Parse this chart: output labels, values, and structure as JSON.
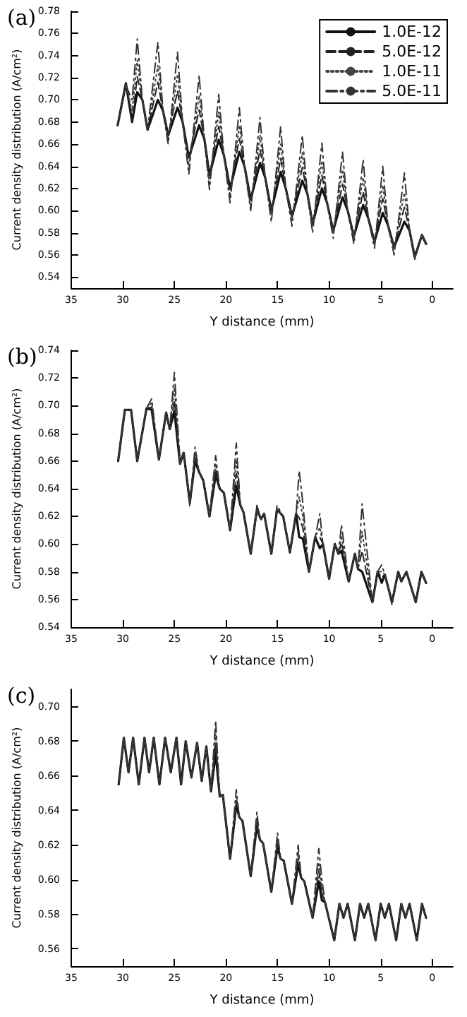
{
  "chart_data": [
    {
      "type": "line",
      "title": "(a)",
      "xlabel": "Y distance (mm)",
      "ylabel": "Current density distribution (A/cm²)",
      "marker": "none",
      "legend": "top right",
      "grid": false,
      "xlim": [
        35,
        -2
      ],
      "xticks": [
        35,
        30,
        25,
        20,
        15,
        10,
        5,
        0
      ],
      "ylim": [
        0.53,
        0.78
      ],
      "yticks": [
        {
          "value": 0.54,
          "label": "0.54"
        },
        {
          "value": 0.56,
          "label": "0.56"
        },
        {
          "value": 0.58,
          "label": "0.58"
        },
        {
          "value": 0.6,
          "label": "0.60"
        },
        {
          "value": 0.62,
          "label": "0.62"
        },
        {
          "value": 0.64,
          "label": "0.64"
        },
        {
          "value": 0.66,
          "label": "0.66"
        },
        {
          "value": 0.68,
          "label": "0.68"
        },
        {
          "value": 0.7,
          "label": "0.70"
        },
        {
          "value": 0.72,
          "label": "0.72"
        },
        {
          "value": 0.74,
          "label": "0.74"
        },
        {
          "value": 0.76,
          "label": "0.76"
        },
        {
          "value": 0.78,
          "label": "0.78"
        }
      ],
      "x": [
        30.5,
        29.7,
        29.1,
        28.6,
        28.1,
        27.6,
        26.6,
        26.1,
        25.6,
        24.7,
        24.2,
        23.6,
        22.6,
        22.1,
        21.6,
        20.7,
        20.2,
        19.6,
        18.7,
        18.2,
        17.6,
        16.7,
        16.2,
        15.6,
        14.7,
        14.2,
        13.6,
        12.6,
        12.1,
        11.6,
        10.7,
        10.2,
        9.6,
        8.7,
        8.2,
        7.6,
        6.7,
        6.2,
        5.6,
        4.8,
        4.3,
        3.7,
        2.7,
        2.2,
        1.7,
        1.0,
        0.6
      ],
      "series": [
        {
          "name": "1.0E-12",
          "color": "#111111",
          "line_style": "solid",
          "values": [
            0.677,
            0.715,
            0.68,
            0.707,
            0.7,
            0.673,
            0.7,
            0.69,
            0.668,
            0.693,
            0.68,
            0.648,
            0.677,
            0.665,
            0.632,
            0.664,
            0.65,
            0.62,
            0.653,
            0.64,
            0.61,
            0.643,
            0.63,
            0.6,
            0.635,
            0.62,
            0.595,
            0.627,
            0.615,
            0.588,
            0.62,
            0.607,
            0.582,
            0.612,
            0.6,
            0.577,
            0.605,
            0.593,
            0.572,
            0.598,
            0.587,
            0.567,
            0.59,
            0.582,
            0.558,
            0.578,
            0.57
          ]
        },
        {
          "name": "5.0E-12",
          "color": "#222222",
          "line_style": "dashed",
          "values": [
            0.677,
            0.715,
            0.68,
            0.721,
            0.7,
            0.673,
            0.716,
            0.69,
            0.668,
            0.708,
            0.68,
            0.648,
            0.691,
            0.665,
            0.632,
            0.676,
            0.65,
            0.62,
            0.665,
            0.64,
            0.61,
            0.655,
            0.63,
            0.6,
            0.647,
            0.62,
            0.595,
            0.639,
            0.615,
            0.588,
            0.632,
            0.607,
            0.582,
            0.624,
            0.6,
            0.577,
            0.617,
            0.593,
            0.572,
            0.611,
            0.587,
            0.567,
            0.603,
            0.582,
            0.558,
            0.578,
            0.57
          ]
        },
        {
          "name": "1.0E-11",
          "color": "#444444",
          "line_style": "dotted",
          "values": [
            0.677,
            0.714,
            0.69,
            0.736,
            0.7,
            0.673,
            0.731,
            0.69,
            0.664,
            0.723,
            0.68,
            0.64,
            0.704,
            0.665,
            0.625,
            0.689,
            0.65,
            0.613,
            0.677,
            0.64,
            0.603,
            0.668,
            0.63,
            0.597,
            0.66,
            0.62,
            0.592,
            0.652,
            0.615,
            0.587,
            0.645,
            0.607,
            0.581,
            0.637,
            0.6,
            0.576,
            0.63,
            0.593,
            0.571,
            0.623,
            0.587,
            0.566,
            0.616,
            0.582,
            0.557,
            0.578,
            0.57
          ]
        },
        {
          "name": "5.0E-11",
          "color": "#333333",
          "line_style": "dashdot",
          "values": [
            0.677,
            0.713,
            0.7,
            0.755,
            0.7,
            0.673,
            0.752,
            0.69,
            0.66,
            0.743,
            0.68,
            0.633,
            0.722,
            0.665,
            0.619,
            0.705,
            0.65,
            0.607,
            0.693,
            0.64,
            0.6,
            0.684,
            0.63,
            0.59,
            0.676,
            0.62,
            0.586,
            0.668,
            0.615,
            0.58,
            0.661,
            0.607,
            0.575,
            0.653,
            0.6,
            0.57,
            0.646,
            0.593,
            0.566,
            0.64,
            0.587,
            0.56,
            0.634,
            0.582,
            0.556,
            0.578,
            0.57
          ]
        }
      ]
    },
    {
      "type": "line",
      "title": "(b)",
      "xlabel": "Y distance (mm)",
      "ylabel": "Current density distribution (A/cm²)",
      "marker": "none",
      "grid": false,
      "xlim": [
        35,
        -2
      ],
      "xticks": [
        35,
        30,
        25,
        20,
        15,
        10,
        5,
        0
      ],
      "ylim": [
        0.54,
        0.74
      ],
      "yticks": [
        {
          "value": 0.54,
          "label": "0.54"
        },
        {
          "value": 0.56,
          "label": "0.56"
        },
        {
          "value": 0.58,
          "label": "0.58"
        },
        {
          "value": 0.6,
          "label": "0.60"
        },
        {
          "value": 0.62,
          "label": "0.62"
        },
        {
          "value": 0.64,
          "label": "0.64"
        },
        {
          "value": 0.66,
          "label": "0.66"
        },
        {
          "value": 0.68,
          "label": "0.68"
        },
        {
          "value": 0.7,
          "label": "0.70"
        },
        {
          "value": 0.72,
          "label": "0.72"
        },
        {
          "value": 0.74,
          "label": "0.74"
        }
      ],
      "x": [
        30.45,
        29.8,
        29.2,
        28.6,
        27.7,
        27.2,
        26.5,
        25.8,
        25.45,
        25.0,
        24.45,
        24.1,
        23.5,
        23.0,
        22.6,
        22.2,
        21.6,
        21.0,
        20.6,
        20.2,
        19.6,
        19.0,
        18.6,
        18.3,
        17.6,
        17.0,
        16.6,
        16.3,
        15.6,
        15.05,
        14.45,
        13.8,
        13.2,
        12.9,
        12.55,
        11.95,
        11.35,
        10.9,
        10.6,
        10.0,
        9.45,
        9.1,
        8.8,
        8.1,
        7.5,
        7.2,
        6.8,
        5.8,
        5.3,
        4.9,
        4.6,
        3.9,
        3.3,
        3.0,
        2.5,
        1.6,
        1.05,
        0.6
      ],
      "series": [
        {
          "color": "#111111",
          "line_style": "solid",
          "values": [
            0.66,
            0.697,
            0.697,
            0.66,
            0.698,
            0.697,
            0.661,
            0.695,
            0.683,
            0.696,
            0.658,
            0.666,
            0.63,
            0.66,
            0.652,
            0.646,
            0.62,
            0.65,
            0.64,
            0.637,
            0.61,
            0.642,
            0.628,
            0.623,
            0.593,
            0.625,
            0.618,
            0.622,
            0.593,
            0.625,
            0.62,
            0.594,
            0.622,
            0.605,
            0.604,
            0.58,
            0.605,
            0.597,
            0.6,
            0.575,
            0.6,
            0.593,
            0.595,
            0.573,
            0.593,
            0.582,
            0.58,
            0.558,
            0.58,
            0.572,
            0.578,
            0.558,
            0.58,
            0.573,
            0.58,
            0.558,
            0.58,
            0.572
          ]
        },
        {
          "color": "#222222",
          "line_style": "dashed",
          "values": [
            0.66,
            0.697,
            0.697,
            0.66,
            0.698,
            0.699,
            0.661,
            0.695,
            0.683,
            0.704,
            0.658,
            0.666,
            0.63,
            0.663,
            0.652,
            0.646,
            0.62,
            0.654,
            0.64,
            0.637,
            0.61,
            0.651,
            0.628,
            0.623,
            0.593,
            0.625,
            0.618,
            0.622,
            0.593,
            0.625,
            0.62,
            0.594,
            0.622,
            0.619,
            0.612,
            0.58,
            0.605,
            0.605,
            0.6,
            0.575,
            0.6,
            0.593,
            0.601,
            0.573,
            0.593,
            0.582,
            0.595,
            0.558,
            0.58,
            0.576,
            0.578,
            0.558,
            0.58,
            0.573,
            0.58,
            0.558,
            0.58,
            0.572
          ]
        },
        {
          "color": "#444444",
          "line_style": "dotted",
          "values": [
            0.66,
            0.697,
            0.697,
            0.66,
            0.698,
            0.702,
            0.661,
            0.695,
            0.683,
            0.713,
            0.658,
            0.666,
            0.63,
            0.666,
            0.652,
            0.646,
            0.62,
            0.658,
            0.64,
            0.637,
            0.61,
            0.661,
            0.628,
            0.623,
            0.593,
            0.625,
            0.618,
            0.622,
            0.593,
            0.625,
            0.62,
            0.594,
            0.622,
            0.634,
            0.62,
            0.58,
            0.605,
            0.612,
            0.6,
            0.575,
            0.6,
            0.593,
            0.606,
            0.573,
            0.593,
            0.582,
            0.609,
            0.558,
            0.58,
            0.58,
            0.578,
            0.558,
            0.58,
            0.573,
            0.58,
            0.558,
            0.58,
            0.572
          ]
        },
        {
          "color": "#333333",
          "line_style": "dashdot",
          "values": [
            0.66,
            0.697,
            0.697,
            0.66,
            0.698,
            0.705,
            0.661,
            0.695,
            0.683,
            0.724,
            0.66,
            0.666,
            0.627,
            0.67,
            0.652,
            0.646,
            0.62,
            0.664,
            0.64,
            0.637,
            0.61,
            0.673,
            0.628,
            0.623,
            0.593,
            0.628,
            0.618,
            0.622,
            0.593,
            0.628,
            0.62,
            0.594,
            0.622,
            0.653,
            0.63,
            0.58,
            0.605,
            0.622,
            0.6,
            0.575,
            0.6,
            0.593,
            0.614,
            0.573,
            0.593,
            0.582,
            0.629,
            0.558,
            0.58,
            0.585,
            0.578,
            0.556,
            0.58,
            0.573,
            0.58,
            0.558,
            0.58,
            0.572
          ]
        }
      ]
    },
    {
      "type": "line",
      "title": "(c)",
      "xlabel": "Y distance (mm)",
      "ylabel": "Current density distribution (A/cm²)",
      "marker": "none",
      "grid": false,
      "xlim": [
        35,
        -2
      ],
      "xticks": [
        35,
        30,
        25,
        20,
        15,
        10,
        5,
        0
      ],
      "ylim": [
        0.55,
        0.71
      ],
      "yticks": [
        {
          "value": 0.56,
          "label": "0.56"
        },
        {
          "value": 0.58,
          "label": "0.58"
        },
        {
          "value": 0.6,
          "label": "0.60"
        },
        {
          "value": 0.62,
          "label": "0.62"
        },
        {
          "value": 0.64,
          "label": "0.64"
        },
        {
          "value": 0.66,
          "label": "0.66"
        },
        {
          "value": 0.68,
          "label": "0.68"
        },
        {
          "value": 0.7,
          "label": "0.70"
        }
      ],
      "x": [
        30.4,
        29.9,
        29.45,
        29.0,
        28.45,
        27.9,
        27.45,
        27.0,
        26.45,
        25.9,
        25.35,
        24.8,
        24.35,
        23.9,
        23.35,
        22.8,
        22.35,
        21.9,
        21.45,
        21.0,
        20.6,
        20.3,
        19.6,
        19.0,
        18.7,
        18.4,
        17.6,
        17.0,
        16.7,
        16.4,
        15.6,
        15.0,
        14.7,
        14.4,
        13.6,
        13.0,
        12.7,
        12.4,
        11.6,
        11.0,
        10.7,
        10.4,
        9.5,
        9.0,
        8.6,
        8.2,
        7.5,
        7.0,
        6.6,
        6.2,
        5.5,
        5.0,
        4.6,
        4.2,
        3.5,
        3.0,
        2.6,
        2.2,
        1.5,
        1.0,
        0.6
      ],
      "series": [
        {
          "color": "#111111",
          "line_style": "solid",
          "values": [
            0.655,
            0.682,
            0.662,
            0.682,
            0.655,
            0.682,
            0.662,
            0.682,
            0.655,
            0.682,
            0.662,
            0.682,
            0.655,
            0.68,
            0.659,
            0.679,
            0.657,
            0.677,
            0.651,
            0.673,
            0.648,
            0.649,
            0.612,
            0.643,
            0.636,
            0.634,
            0.602,
            0.631,
            0.623,
            0.621,
            0.593,
            0.619,
            0.612,
            0.611,
            0.586,
            0.609,
            0.601,
            0.599,
            0.578,
            0.599,
            0.588,
            0.587,
            0.565,
            0.586,
            0.578,
            0.586,
            0.565,
            0.586,
            0.578,
            0.586,
            0.565,
            0.586,
            0.578,
            0.586,
            0.565,
            0.586,
            0.578,
            0.586,
            0.565,
            0.586,
            0.578
          ]
        },
        {
          "color": "#222222",
          "line_style": "dashed",
          "values": [
            0.655,
            0.682,
            0.662,
            0.682,
            0.655,
            0.682,
            0.662,
            0.682,
            0.655,
            0.682,
            0.662,
            0.682,
            0.655,
            0.68,
            0.659,
            0.679,
            0.657,
            0.677,
            0.651,
            0.679,
            0.648,
            0.649,
            0.612,
            0.646,
            0.636,
            0.634,
            0.602,
            0.633,
            0.623,
            0.621,
            0.593,
            0.621,
            0.612,
            0.611,
            0.586,
            0.612,
            0.601,
            0.599,
            0.578,
            0.605,
            0.592,
            0.587,
            0.565,
            0.586,
            0.578,
            0.586,
            0.565,
            0.586,
            0.578,
            0.586,
            0.565,
            0.586,
            0.578,
            0.586,
            0.565,
            0.586,
            0.578,
            0.586,
            0.565,
            0.586,
            0.578
          ]
        },
        {
          "color": "#444444",
          "line_style": "dotted",
          "values": [
            0.655,
            0.682,
            0.662,
            0.682,
            0.655,
            0.682,
            0.662,
            0.682,
            0.655,
            0.682,
            0.662,
            0.682,
            0.655,
            0.68,
            0.659,
            0.679,
            0.657,
            0.677,
            0.651,
            0.684,
            0.648,
            0.649,
            0.612,
            0.648,
            0.636,
            0.634,
            0.602,
            0.636,
            0.623,
            0.621,
            0.593,
            0.624,
            0.612,
            0.611,
            0.586,
            0.616,
            0.601,
            0.599,
            0.578,
            0.61,
            0.595,
            0.587,
            0.565,
            0.586,
            0.578,
            0.586,
            0.565,
            0.586,
            0.578,
            0.586,
            0.565,
            0.586,
            0.578,
            0.586,
            0.565,
            0.586,
            0.578,
            0.586,
            0.565,
            0.586,
            0.578
          ]
        },
        {
          "color": "#333333",
          "line_style": "dashdot",
          "values": [
            0.655,
            0.682,
            0.662,
            0.682,
            0.655,
            0.682,
            0.662,
            0.682,
            0.655,
            0.682,
            0.662,
            0.682,
            0.655,
            0.68,
            0.659,
            0.679,
            0.657,
            0.677,
            0.651,
            0.692,
            0.648,
            0.649,
            0.612,
            0.652,
            0.636,
            0.634,
            0.602,
            0.639,
            0.623,
            0.621,
            0.593,
            0.627,
            0.612,
            0.611,
            0.586,
            0.62,
            0.601,
            0.599,
            0.578,
            0.618,
            0.6,
            0.587,
            0.565,
            0.586,
            0.578,
            0.586,
            0.565,
            0.586,
            0.578,
            0.586,
            0.565,
            0.586,
            0.578,
            0.586,
            0.565,
            0.586,
            0.578,
            0.586,
            0.565,
            0.586,
            0.578
          ]
        }
      ]
    }
  ]
}
